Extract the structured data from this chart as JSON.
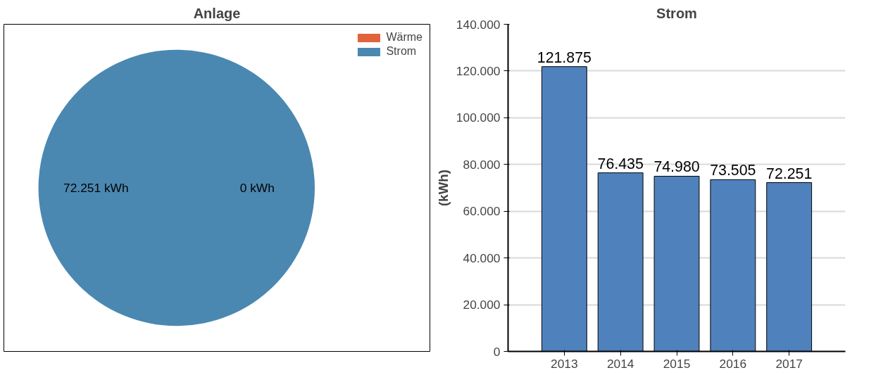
{
  "chart_data": [
    {
      "type": "pie",
      "title": "Anlage",
      "categories": [
        "Wärme",
        "Strom"
      ],
      "values": [
        0,
        72251
      ],
      "colors": [
        "#e2623a",
        "#4a88b1"
      ],
      "value_labels": [
        "0 kWh",
        "72.251 kWh"
      ],
      "legend": "top right"
    },
    {
      "type": "bar",
      "title": "Strom",
      "ylabel": "(kWh)",
      "categories": [
        "2013",
        "2014",
        "2015",
        "2016",
        "2017"
      ],
      "values": [
        121875,
        76435,
        74980,
        73505,
        72251
      ],
      "color": "#4f81bd",
      "value_labels": [
        "121.875",
        "76.435",
        "74.980",
        "73.505",
        "72.251"
      ],
      "ylim": [
        0,
        140000
      ],
      "yticks": [
        0,
        {
          "value": 20000,
          "label": "20.000"
        },
        {
          "value": 40000,
          "label": "40.000"
        },
        {
          "value": 60000,
          "label": "60.000"
        },
        {
          "value": 80000,
          "label": "80.000"
        },
        {
          "value": 100000,
          "label": "100.000"
        },
        {
          "value": 120000,
          "label": "120.000"
        },
        {
          "value": 140000,
          "label": "140.000"
        }
      ],
      "grid": "y"
    }
  ]
}
